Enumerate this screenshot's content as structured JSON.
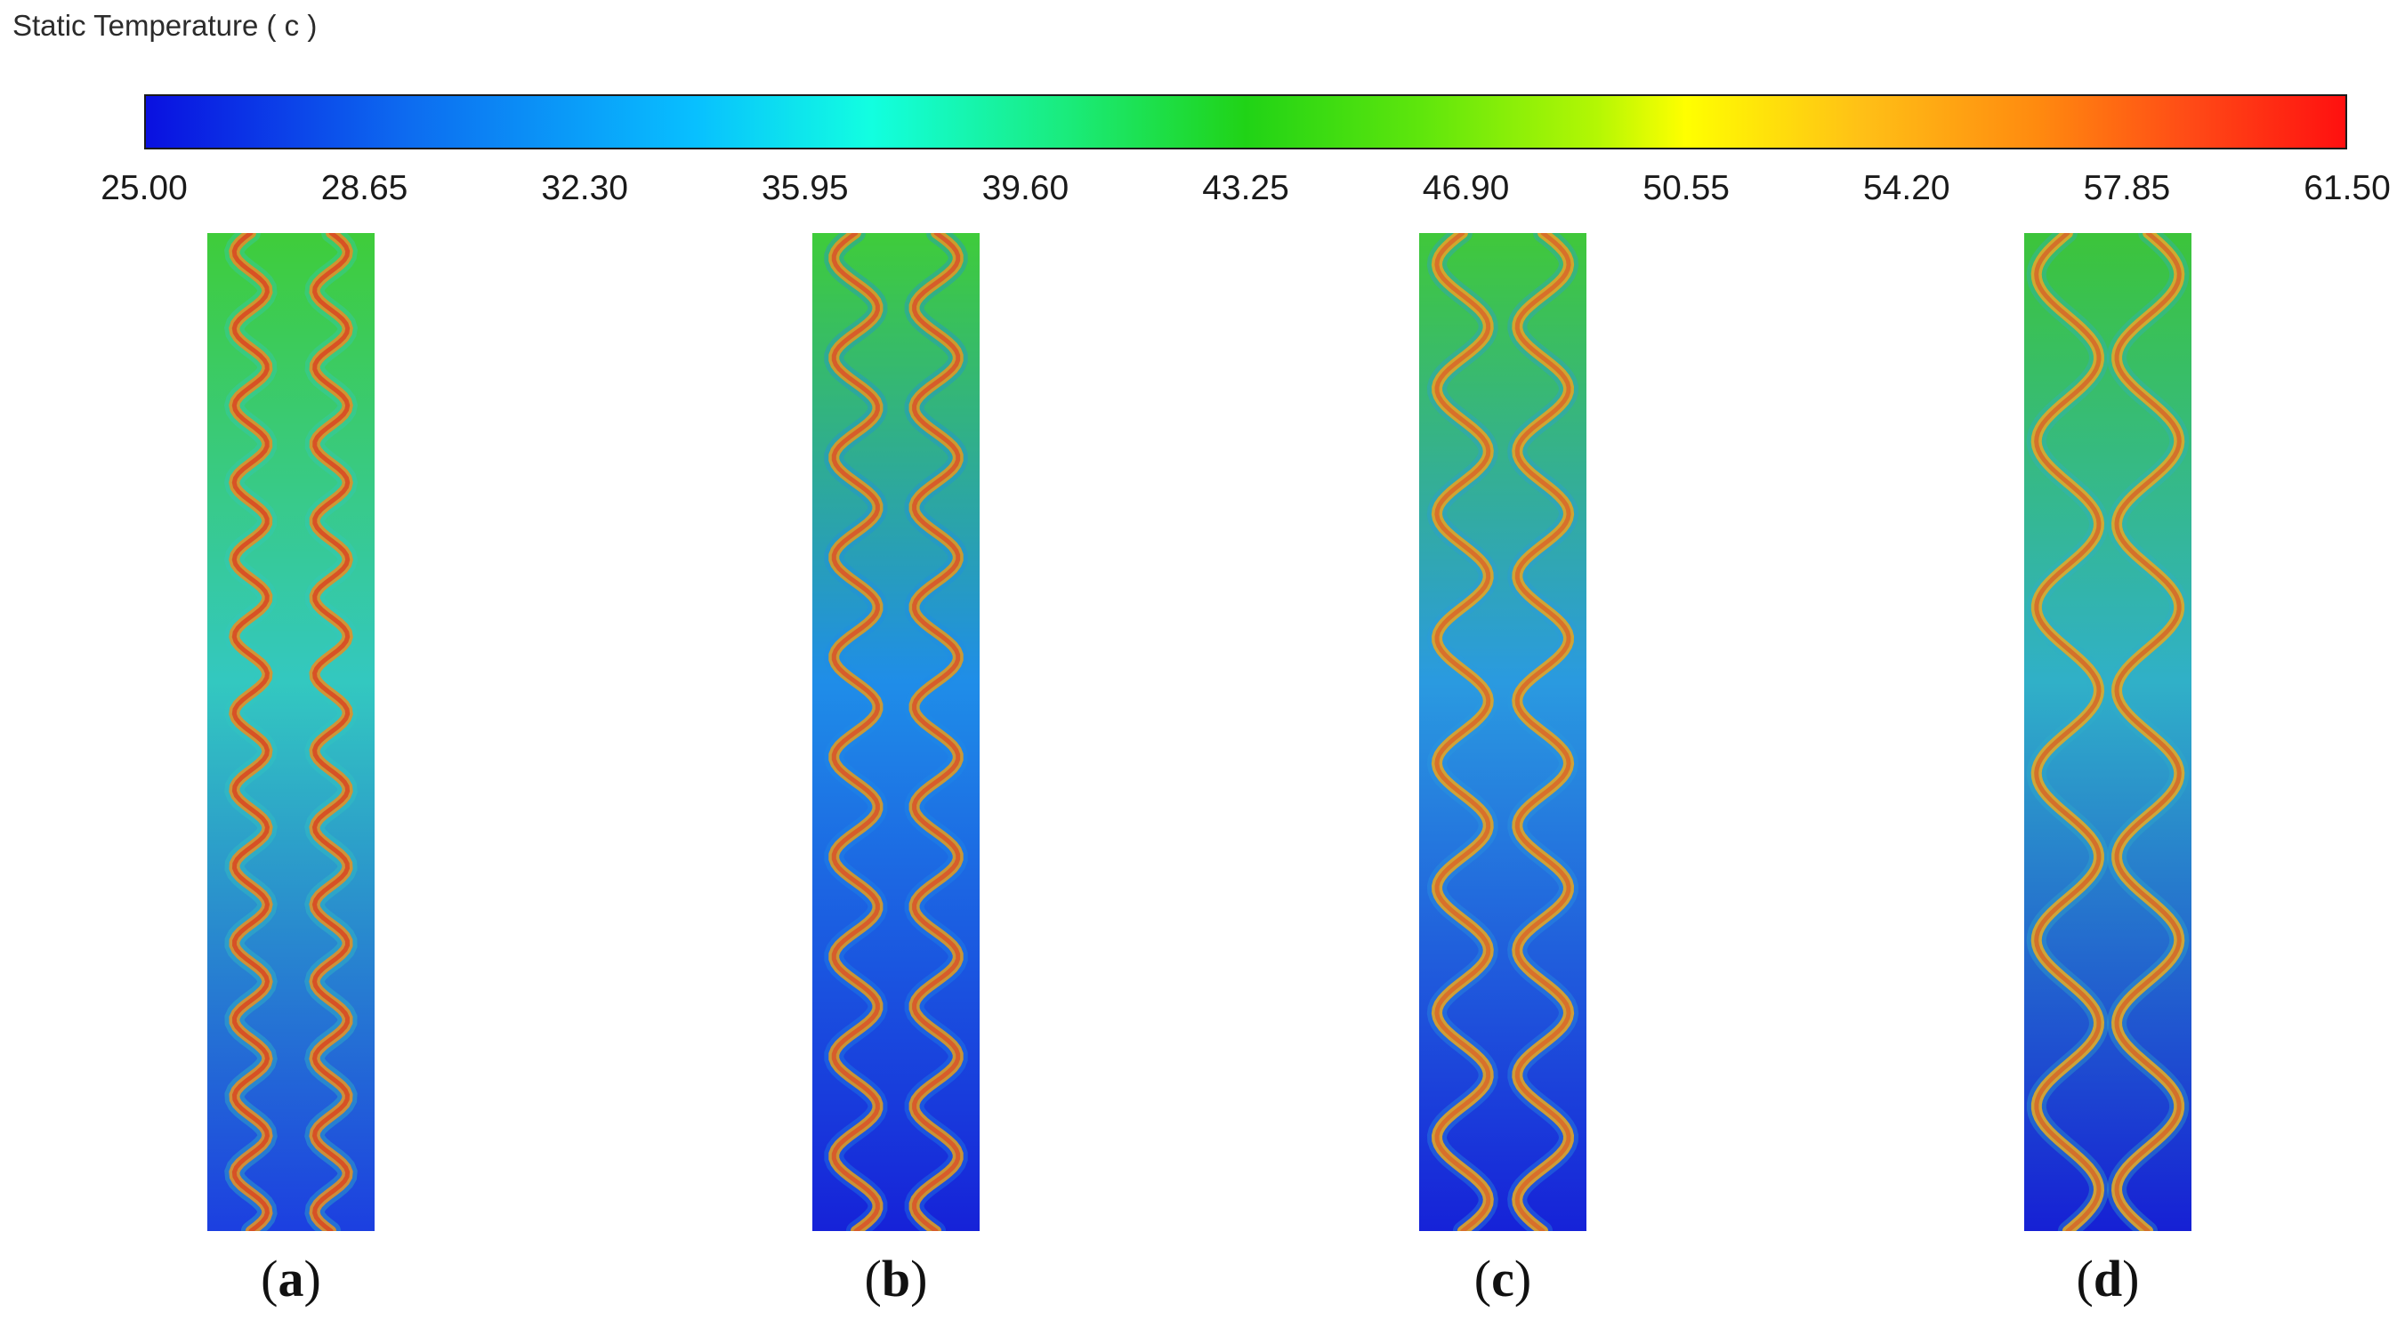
{
  "colorbar": {
    "title": "Static Temperature ( c )",
    "ticks": [
      "25.00",
      "28.65",
      "32.30",
      "35.95",
      "39.60",
      "43.25",
      "46.90",
      "50.55",
      "54.20",
      "57.85",
      "61.50"
    ],
    "min": 25.0,
    "max": 61.5
  },
  "panels": [
    {
      "label": "a",
      "waves": 13,
      "amplitude": 0.18,
      "colors": {
        "top": "#3fcc3a",
        "bottom": "#1c3fe0",
        "mid": "#33c8c0",
        "ridge": "#e09028",
        "core": "#d84a24"
      }
    },
    {
      "label": "b",
      "waves": 10,
      "amplitude": 0.24,
      "colors": {
        "top": "#3fcc3a",
        "bottom": "#1622d8",
        "mid": "#1f8de8",
        "ridge": "#dd9a22",
        "core": "#d8562a"
      }
    },
    {
      "label": "c",
      "waves": 8,
      "amplitude": 0.28,
      "colors": {
        "top": "#40c83a",
        "bottom": "#1622d8",
        "mid": "#2a9ae0",
        "ridge": "#e2a424",
        "core": "#d86a2a"
      }
    },
    {
      "label": "d",
      "waves": 6,
      "amplitude": 0.34,
      "colors": {
        "top": "#3cc43a",
        "bottom": "#1620d4",
        "mid": "#30b0c8",
        "ridge": "#e0a828",
        "core": "#d46a2a"
      }
    }
  ]
}
